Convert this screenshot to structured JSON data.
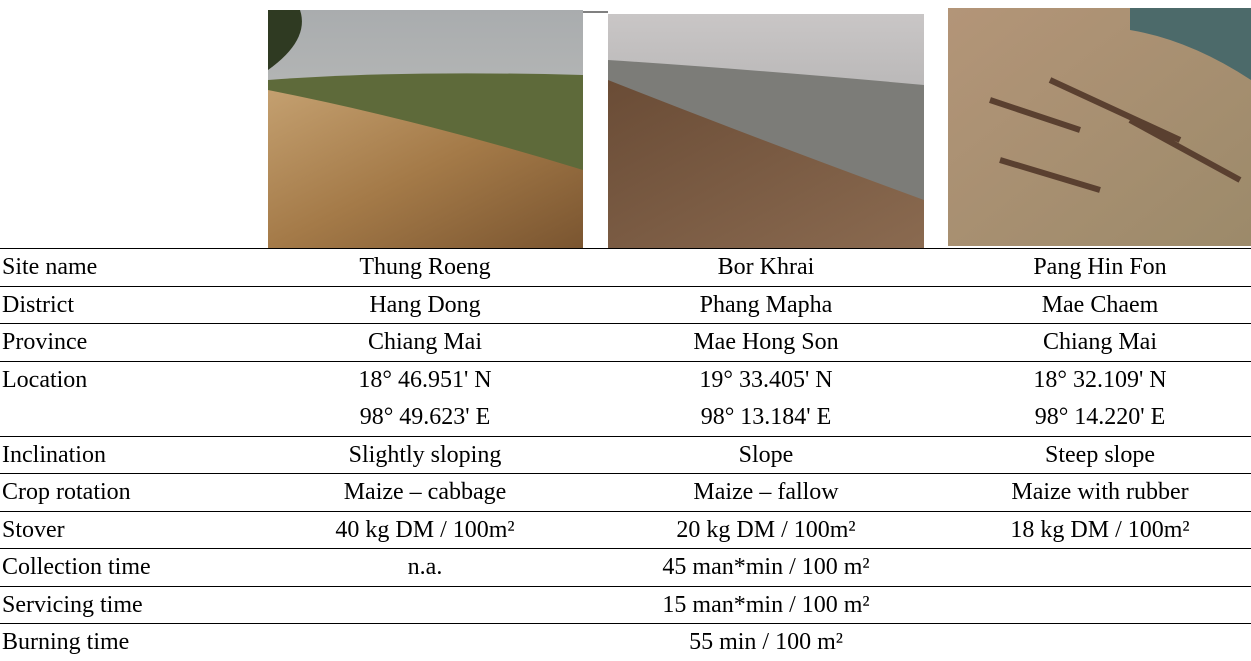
{
  "table": {
    "rows": [
      {
        "label": "Site name",
        "cells": [
          [
            "Thung Roeng"
          ],
          [
            "Bor Khrai"
          ],
          [
            "Pang Hin Fon"
          ]
        ]
      },
      {
        "label": "District",
        "cells": [
          [
            "Hang Dong"
          ],
          [
            "Phang Mapha"
          ],
          [
            "Mae Chaem"
          ]
        ]
      },
      {
        "label": "Province",
        "cells": [
          [
            "Chiang Mai"
          ],
          [
            "Mae Hong Son"
          ],
          [
            "Chiang Mai"
          ]
        ]
      },
      {
        "label": "Location",
        "cells": [
          [
            "18° 46.951' N",
            "98° 49.623' E"
          ],
          [
            "19° 33.405' N",
            "98° 13.184' E"
          ],
          [
            "18° 32.109' N",
            "98° 14.220' E"
          ]
        ]
      },
      {
        "label": "Inclination",
        "cells": [
          [
            "Slightly sloping"
          ],
          [
            "Slope"
          ],
          [
            "Steep slope"
          ]
        ]
      },
      {
        "label": "Crop rotation",
        "cells": [
          [
            "Maize – cabbage"
          ],
          [
            "Maize – fallow"
          ],
          [
            "Maize with rubber"
          ]
        ]
      },
      {
        "label": "Stover",
        "cells": [
          [
            "40 kg DM / 100m²"
          ],
          [
            "20 kg DM / 100m²"
          ],
          [
            "18 kg DM / 100m²"
          ]
        ]
      },
      {
        "label": "Collection time",
        "cells": [
          [
            "n.a."
          ],
          [
            "45 man*min / 100 m²"
          ],
          null
        ]
      },
      {
        "label": "Servicing time",
        "cells": [
          null,
          [
            "15 man*min / 100 m²"
          ],
          null
        ]
      },
      {
        "label": "Burning time",
        "cells": [
          null,
          [
            "55 min / 100 m²"
          ],
          null
        ]
      }
    ]
  }
}
